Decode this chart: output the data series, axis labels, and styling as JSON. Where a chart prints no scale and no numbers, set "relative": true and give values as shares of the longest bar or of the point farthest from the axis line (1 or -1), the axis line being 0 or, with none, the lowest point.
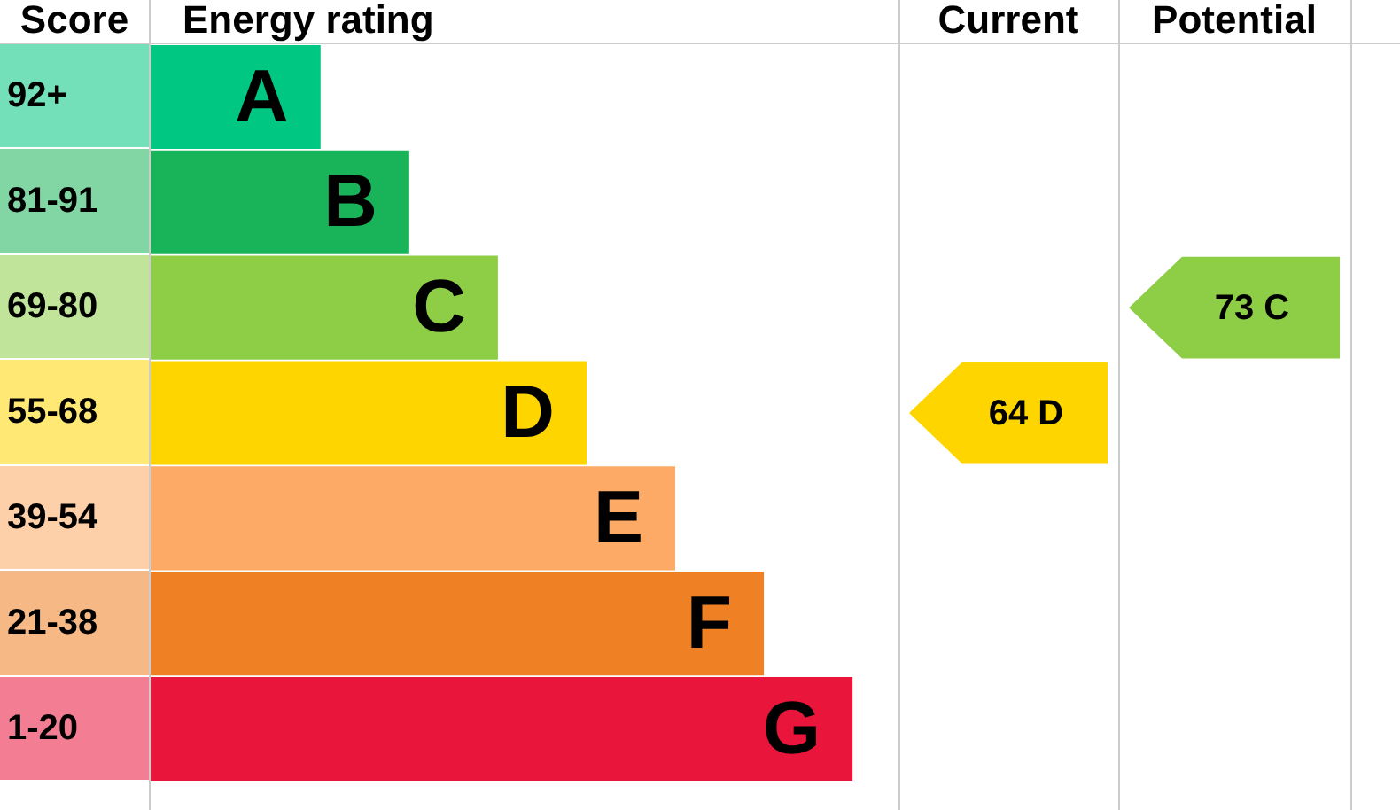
{
  "chart_data": {
    "type": "bar",
    "orientation": "horizontal",
    "relative": true,
    "xlabel": "Energy rating",
    "ylabel": "Score",
    "categories": [
      "92+",
      "81-91",
      "69-80",
      "55-68",
      "39-54",
      "21-38",
      "1-20"
    ],
    "values": [
      0.244,
      0.37,
      0.496,
      0.622,
      0.748,
      0.874,
      1
    ],
    "colors": [
      "#00c781",
      "#19b459",
      "#8dce46",
      "#ffd500",
      "#fcaa65",
      "#ef8023",
      "#e9153b"
    ],
    "annotations": [
      "A",
      "B",
      "C",
      "D",
      "E",
      "F",
      "G",
      "Current",
      "Potential",
      "64 D",
      "73 C"
    ],
    "grid": false,
    "legend": false
  }
}
